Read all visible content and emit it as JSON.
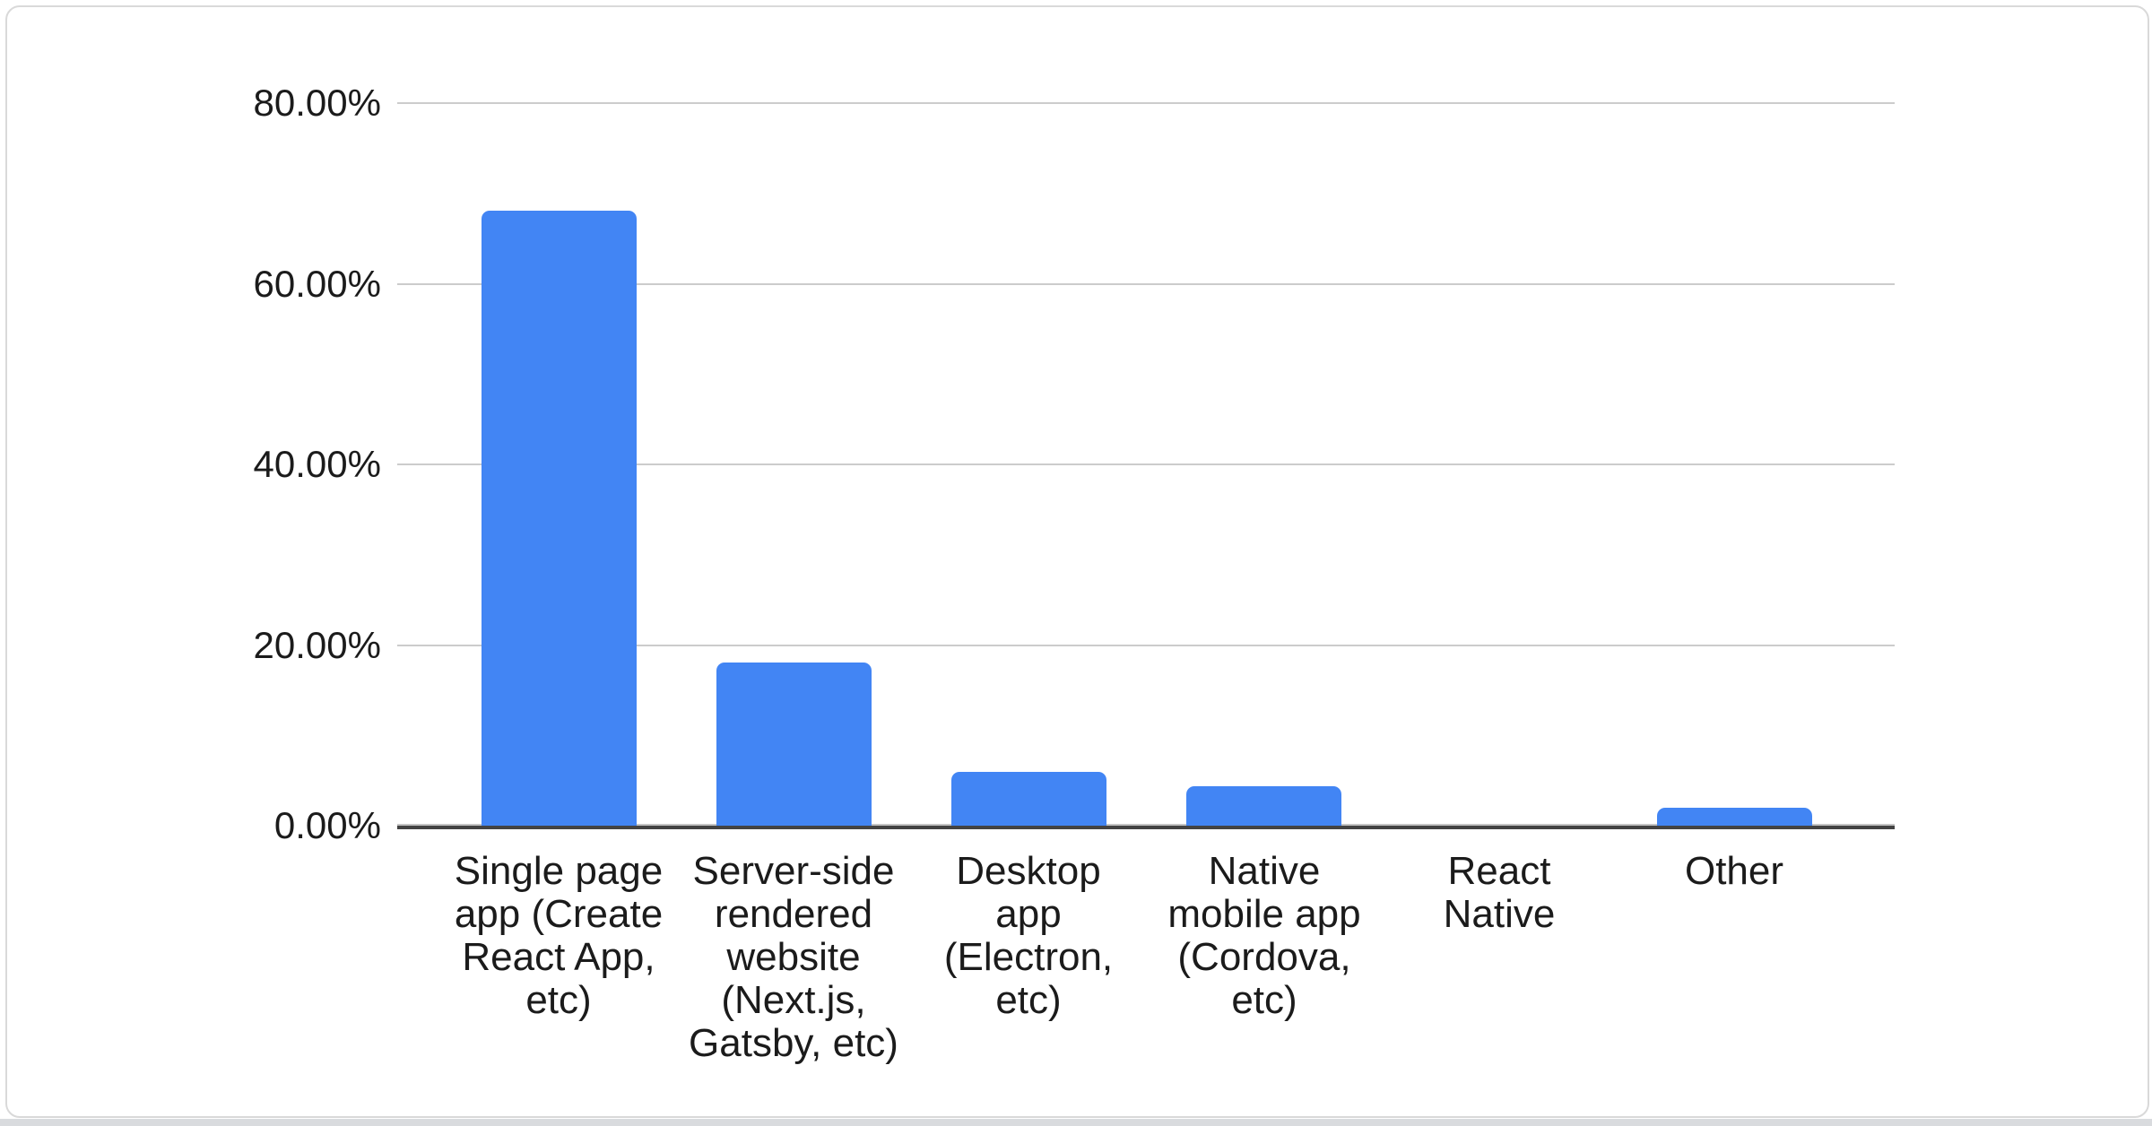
{
  "chart_data": {
    "type": "bar",
    "categories": [
      "Single page app (Create React App, etc)",
      "Server-side rendered website (Next.js, Gatsby, etc)",
      "Desktop app (Electron, etc)",
      "Native mobile app (Cordova, etc)",
      "React Native",
      "Other"
    ],
    "category_label_lines": [
      "Single page\napp (Create\nReact App,\netc)",
      "Server-side\nrendered\nwebsite\n(Next.js,\nGatsby, etc)",
      "Desktop\napp\n(Electron,\netc)",
      "Native\nmobile app\n(Cordova,\netc)",
      "React\nNative",
      "Other"
    ],
    "values": [
      68.3,
      18.3,
      6.2,
      4.6,
      0.1,
      2.2
    ],
    "value_unit": "%",
    "ylim": [
      0,
      80
    ],
    "y_ticks": [
      {
        "value": 80,
        "label": "80.00%"
      },
      {
        "value": 60,
        "label": "60.00%"
      },
      {
        "value": 40,
        "label": "40.00%"
      },
      {
        "value": 20,
        "label": "20.00%"
      },
      {
        "value": 0,
        "label": "0.00%"
      }
    ],
    "grid": true,
    "legend": "none",
    "colors": {
      "bar": "#4285f4",
      "gridline": "#cccccc",
      "zero_gridline": "#c4c4c4",
      "axis_line": "#434343",
      "text": "#1b1b1b",
      "card_background": "#ffffff",
      "card_border": "#d9d9d9",
      "page_background": "#d9dbde"
    }
  }
}
